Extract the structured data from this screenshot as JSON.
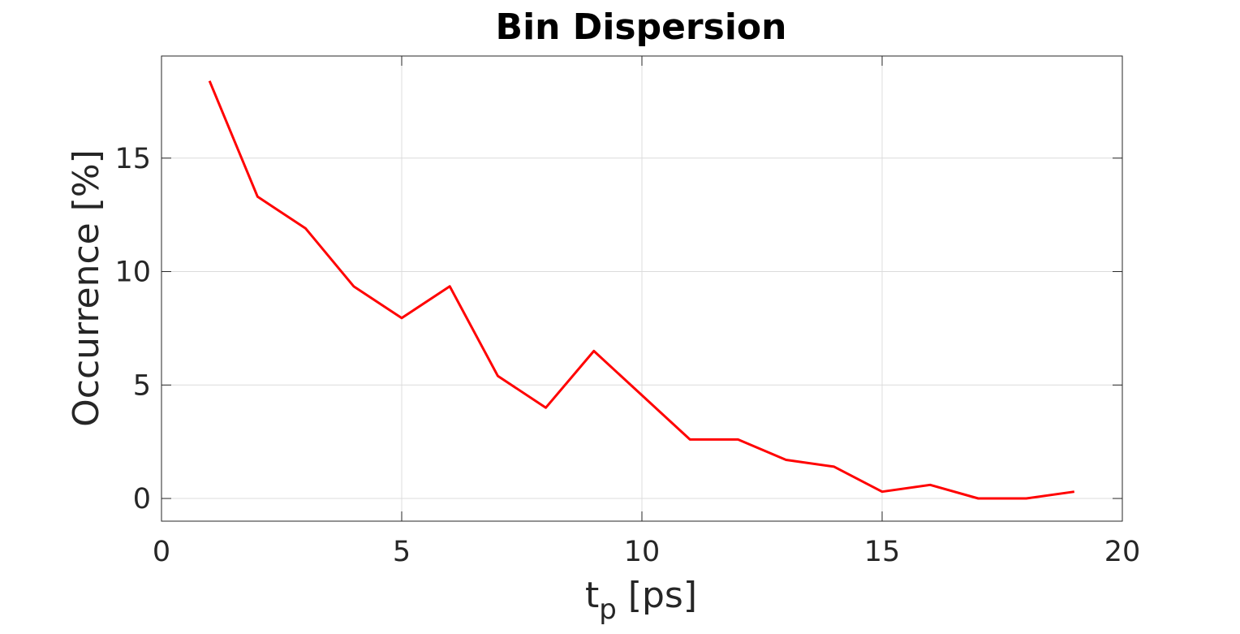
{
  "chart_data": {
    "type": "line",
    "title": "Bin Dispersion",
    "xlabel": "t_p [ps]",
    "xlabel_main": "t",
    "xlabel_sub": "p",
    "xlabel_rest": " [ps]",
    "ylabel": "Occurrence [%]",
    "xlim": [
      0,
      20
    ],
    "ylim": [
      -1,
      19.5
    ],
    "xticks": [
      "0",
      "5",
      "10",
      "15",
      "20"
    ],
    "yticks": [
      "0",
      "5",
      "10",
      "15"
    ],
    "grid": true,
    "line_color": "#ff0000",
    "x": [
      1,
      2,
      3,
      4,
      5,
      6,
      7,
      8,
      9,
      10,
      11,
      12,
      13,
      14,
      15,
      16,
      17,
      18,
      19
    ],
    "y": [
      18.4,
      13.3,
      11.9,
      9.35,
      7.95,
      9.35,
      5.4,
      4.0,
      6.5,
      4.55,
      2.6,
      2.6,
      1.7,
      1.4,
      0.3,
      0.6,
      0.0,
      0.0,
      0.3
    ]
  }
}
